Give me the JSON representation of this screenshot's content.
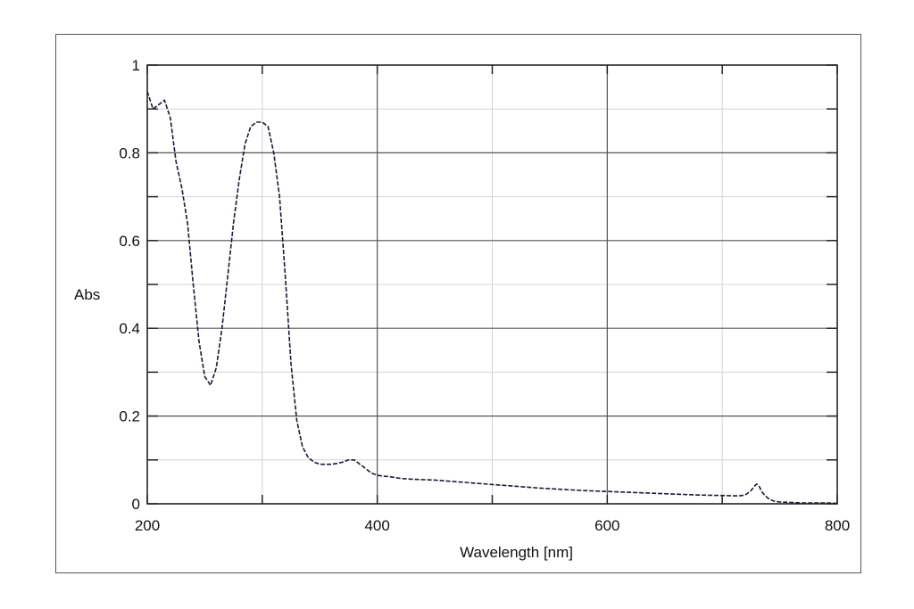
{
  "chart_data": {
    "type": "line",
    "title": "",
    "xlabel": "Wavelength [nm]",
    "ylabel": "Abs",
    "xlim": [
      200,
      800
    ],
    "ylim": [
      0,
      1
    ],
    "x_ticks": [
      200,
      400,
      600,
      800
    ],
    "x_tick_labels": [
      "200",
      "400",
      "600",
      "800"
    ],
    "x_minor_ticks": [
      300,
      500,
      700
    ],
    "y_ticks": [
      0,
      0.2,
      0.4,
      0.6,
      0.8,
      1
    ],
    "y_tick_labels": [
      "0",
      "0.2",
      "0.4",
      "0.6",
      "0.8",
      "1"
    ],
    "y_minor_ticks": [
      0.1,
      0.3,
      0.5,
      0.7,
      0.9
    ],
    "grid": true,
    "line_style": "dashed",
    "line_color": "#1a1a33",
    "series": [
      {
        "x": [
          200,
          205,
          210,
          215,
          220,
          225,
          230,
          235,
          240,
          245,
          250,
          255,
          260,
          265,
          270,
          275,
          280,
          285,
          290,
          295,
          300,
          305,
          310,
          315,
          320,
          325,
          330,
          335,
          340,
          345,
          350,
          355,
          360,
          365,
          370,
          375,
          380,
          385,
          390,
          395,
          400,
          405,
          410,
          420,
          430,
          440,
          450,
          460,
          480,
          500,
          520,
          540,
          560,
          580,
          600,
          620,
          640,
          660,
          680,
          700,
          710,
          715,
          720,
          725,
          728,
          730,
          732,
          735,
          740,
          745,
          750,
          760,
          770,
          780,
          790,
          800
        ],
        "y": [
          0.94,
          0.9,
          0.91,
          0.92,
          0.88,
          0.78,
          0.72,
          0.64,
          0.5,
          0.37,
          0.29,
          0.27,
          0.31,
          0.4,
          0.52,
          0.64,
          0.74,
          0.82,
          0.86,
          0.87,
          0.87,
          0.86,
          0.8,
          0.7,
          0.52,
          0.32,
          0.19,
          0.13,
          0.105,
          0.095,
          0.09,
          0.09,
          0.09,
          0.092,
          0.095,
          0.1,
          0.1,
          0.09,
          0.08,
          0.07,
          0.065,
          0.063,
          0.062,
          0.058,
          0.056,
          0.055,
          0.054,
          0.052,
          0.048,
          0.044,
          0.04,
          0.036,
          0.033,
          0.03,
          0.028,
          0.026,
          0.024,
          0.022,
          0.02,
          0.019,
          0.018,
          0.018,
          0.02,
          0.03,
          0.04,
          0.045,
          0.04,
          0.025,
          0.012,
          0.006,
          0.004,
          0.003,
          0.002,
          0.002,
          0.002,
          0.001
        ]
      }
    ]
  }
}
